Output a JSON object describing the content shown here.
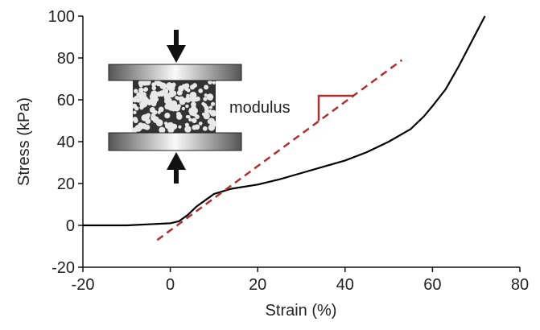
{
  "chart_data": {
    "type": "line",
    "xlabel": "Strain (%)",
    "ylabel": "Stress (kPa)",
    "annotation": "modulus",
    "xlim": [
      -20,
      80
    ],
    "xticks": [
      -20,
      0,
      20,
      40,
      60,
      80
    ],
    "ylim": [
      -20,
      100
    ],
    "yticks": [
      -20,
      0,
      20,
      40,
      60,
      80,
      100
    ],
    "series": [
      {
        "color": "#000000",
        "dash": false,
        "x": [
          -20,
          -15,
          -10,
          -5,
          0,
          2,
          4,
          6,
          8,
          10,
          14,
          20,
          25,
          30,
          35,
          40,
          45,
          50,
          55,
          58,
          60,
          63,
          66,
          68,
          70,
          72
        ],
        "values": [
          0,
          0,
          0,
          0.5,
          1,
          2,
          5,
          9,
          12,
          15,
          17.5,
          19.5,
          22,
          25,
          28,
          31,
          35,
          40,
          46,
          52,
          57,
          65,
          76,
          84,
          92,
          100
        ]
      },
      {
        "color": "#b03030",
        "dash": true,
        "x": [
          -3,
          53
        ],
        "values": [
          -7,
          79
        ]
      }
    ]
  }
}
